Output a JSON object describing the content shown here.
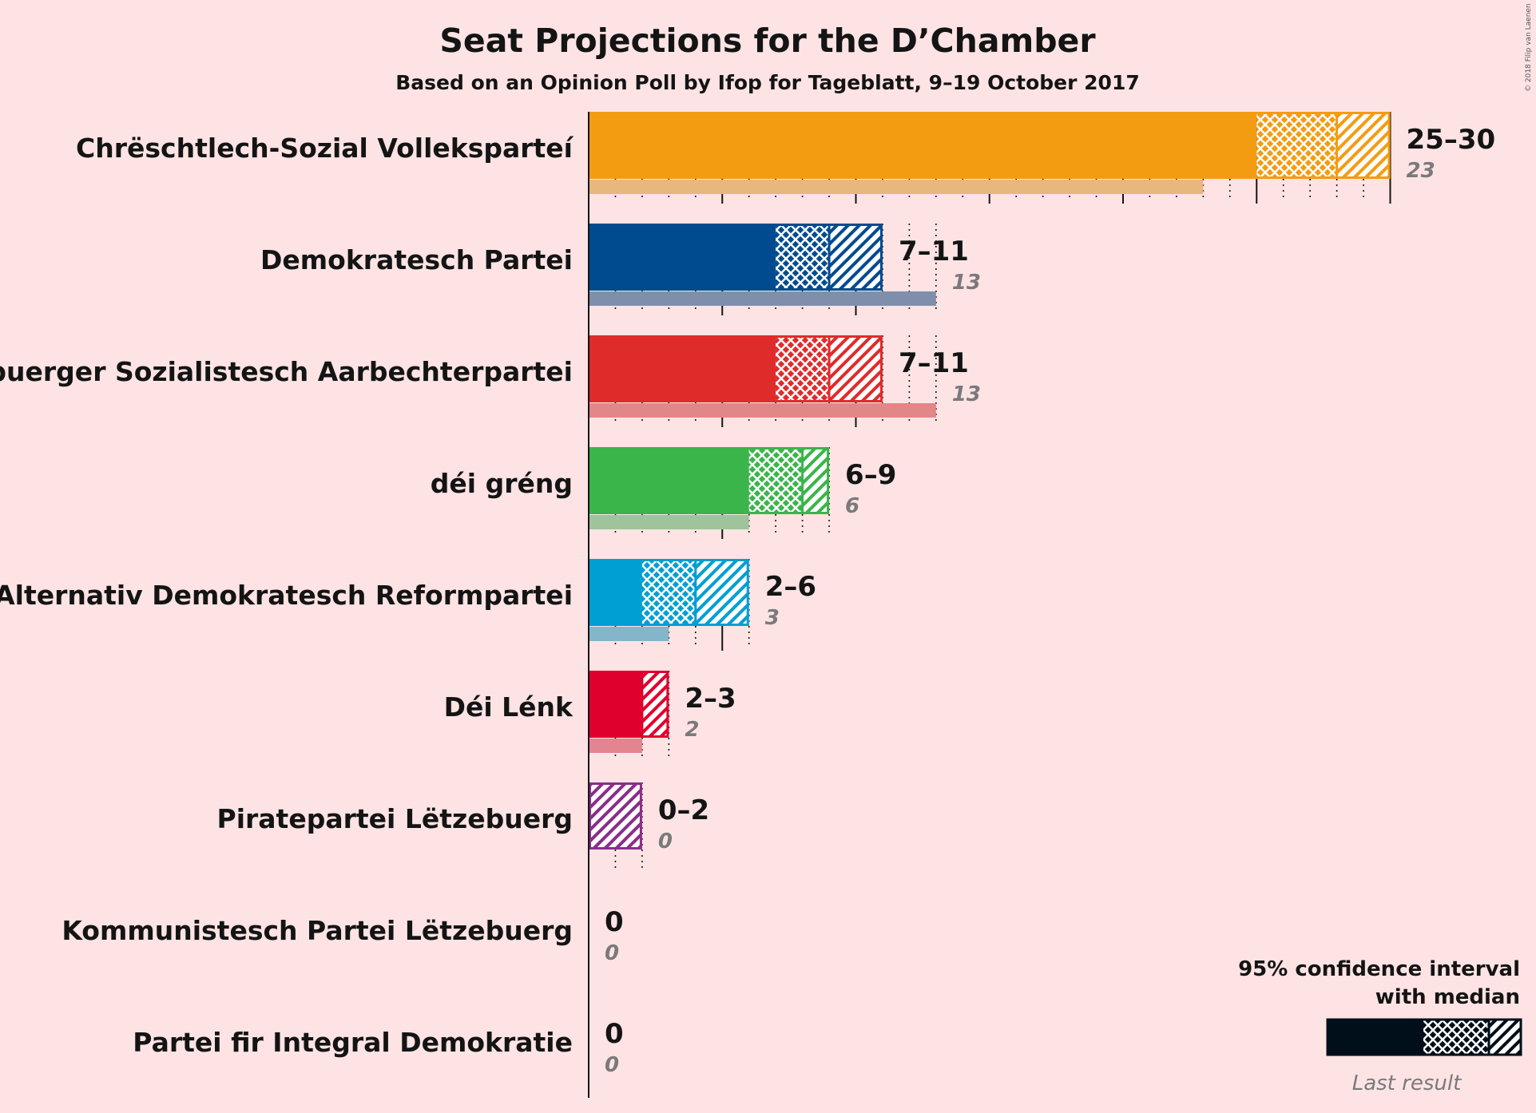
{
  "chart_data": {
    "type": "bar",
    "title": "Seat Projections for the D’Chamber",
    "subtitle": "Based on an Opinion Poll by Ifop for Tageblatt, 9–19 October 2017",
    "copyright": "© 2018 Filip van Laenen",
    "xlim": [
      0,
      30
    ],
    "series": [
      {
        "party": "Chrëschtlech-Sozial Volleksparteí",
        "low": 25,
        "median": 28,
        "high": 30,
        "last": 23,
        "range_label": "25–30",
        "last_label": "23",
        "color": "#f39c12",
        "last_color": "#e8b77e"
      },
      {
        "party": "Demokratesch Partei",
        "low": 7,
        "median": 9,
        "high": 11,
        "last": 13,
        "range_label": "7–11",
        "last_label": "13",
        "color": "#004b8f",
        "last_color": "#7f8fab"
      },
      {
        "party": "Lëtzebuerger Sozialistesch Aarbechterpartei",
        "low": 7,
        "median": 9,
        "high": 11,
        "last": 13,
        "range_label": "7–11",
        "last_label": "13",
        "color": "#e02b2b",
        "last_color": "#e38688"
      },
      {
        "party": "déi gréng",
        "low": 6,
        "median": 8,
        "high": 9,
        "last": 6,
        "range_label": "6–9",
        "last_label": "6",
        "color": "#3ab54a",
        "last_color": "#9fc49b"
      },
      {
        "party": "Alternativ Demokratesch Reformpartei",
        "low": 2,
        "median": 4,
        "high": 6,
        "last": 3,
        "range_label": "2–6",
        "last_label": "3",
        "color": "#009fd3",
        "last_color": "#84b5cb"
      },
      {
        "party": "Déi Lénk",
        "low": 2,
        "median": 2,
        "high": 3,
        "last": 2,
        "range_label": "2–3",
        "last_label": "2",
        "color": "#e0002e",
        "last_color": "#e38491"
      },
      {
        "party": "Piratepartei Lëtzebuerg",
        "low": 0,
        "median": 0,
        "high": 2,
        "last": 0,
        "range_label": "0–2",
        "last_label": "0",
        "color": "#8a2e8a",
        "last_color": "#bf93bf"
      },
      {
        "party": "Kommunistesch Partei Lëtzebuerg",
        "low": 0,
        "median": 0,
        "high": 0,
        "last": 0,
        "range_label": "0",
        "last_label": "0",
        "color": "#b40000",
        "last_color": "#d98080"
      },
      {
        "party": "Partei fir Integral Demokratie",
        "low": 0,
        "median": 0,
        "high": 0,
        "last": 0,
        "range_label": "0",
        "last_label": "0",
        "color": "#2a6fa0",
        "last_color": "#8fb0c8"
      }
    ],
    "legend": {
      "line1": "95% confidence interval",
      "line2": "with median",
      "last": "Last result",
      "color": "#000f19",
      "last_color": "#7a6b6e"
    }
  }
}
